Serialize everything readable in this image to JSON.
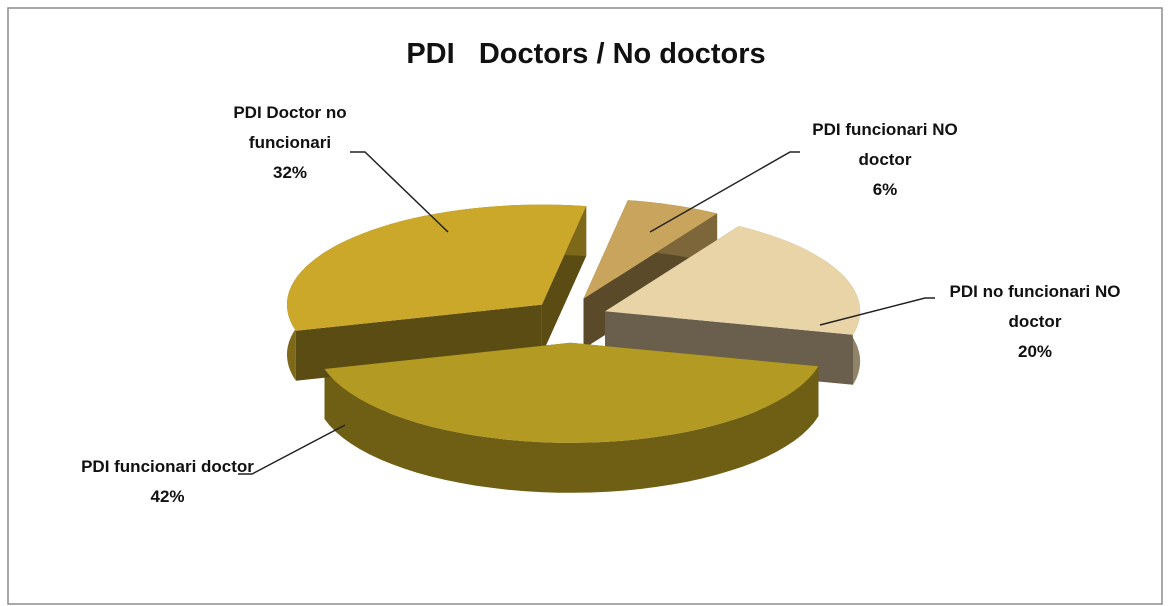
{
  "chart_data": {
    "type": "pie",
    "title": "PDI   Doctors / No doctors",
    "categories": [
      "PDI funcionari NO doctor",
      "PDI no funcionari NO doctor",
      "PDI funcionari doctor",
      "PDI Doctor no funcionari"
    ],
    "values": [
      6,
      20,
      42,
      32
    ],
    "value_labels": [
      "6%",
      "20%",
      "42%",
      "32%"
    ],
    "colors": [
      "#c9a45c",
      "#e9d4a8",
      "#b39a22",
      "#cba82a"
    ]
  }
}
